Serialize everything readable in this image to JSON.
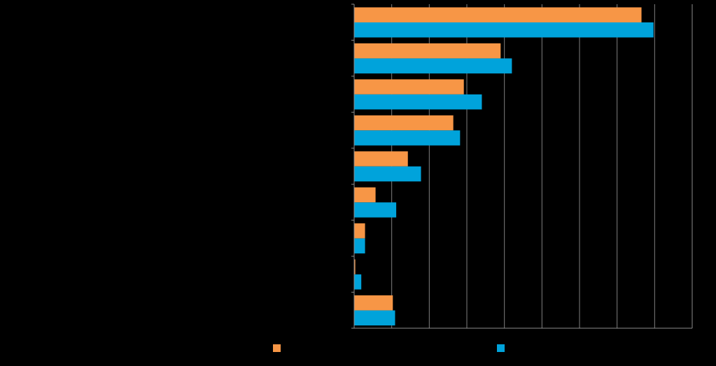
{
  "chart_data": {
    "type": "bar",
    "orientation": "horizontal",
    "title": "",
    "xlabel": "",
    "ylabel": "",
    "categories": [
      "",
      "",
      "",
      "",
      "",
      "",
      "",
      "",
      ""
    ],
    "series": [
      {
        "name": "",
        "color": "#F79646",
        "values": [
          7.65,
          3.9,
          2.92,
          2.64,
          1.43,
          0.57,
          0.29,
          0.03,
          1.03
        ]
      },
      {
        "name": "",
        "color": "#00A3DB",
        "values": [
          7.97,
          4.2,
          3.4,
          2.82,
          1.78,
          1.12,
          0.29,
          0.19,
          1.09
        ]
      }
    ],
    "xlim": [
      0,
      9
    ],
    "grid": true,
    "legend_position": "bottom",
    "background": "#000000",
    "axis_color": "#8C8C8C",
    "grid_color": "#7F7F7F"
  }
}
